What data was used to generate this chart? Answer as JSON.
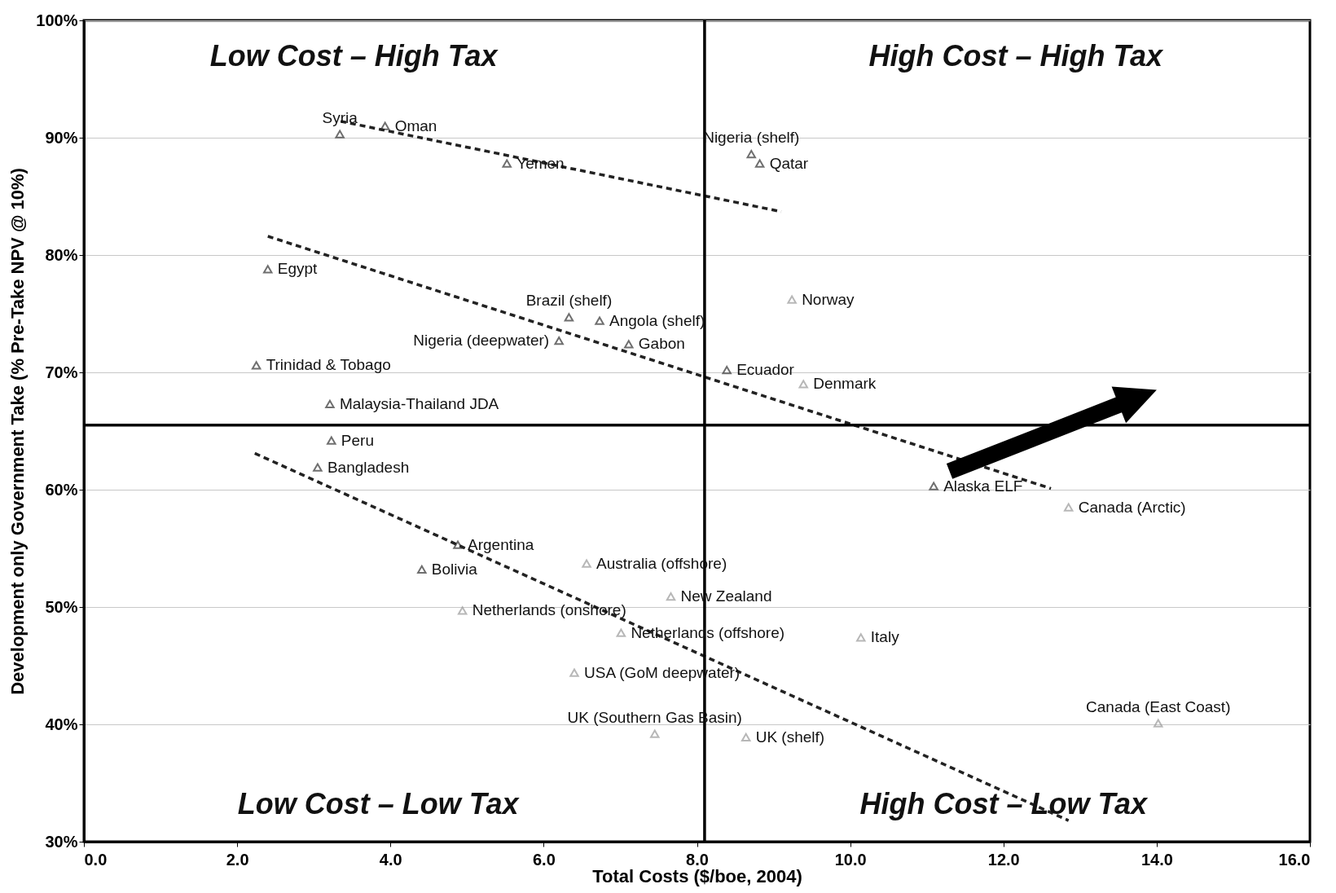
{
  "chart_data": {
    "type": "scatter",
    "xlabel": "Total Costs ($/boe, 2004)",
    "ylabel": "Development only Government Take (% Pre-Take NPV @ 10%)",
    "xlim": [
      0,
      16
    ],
    "xticks": [
      {
        "value": 0,
        "label": "0.0"
      },
      {
        "value": 2,
        "label": "2.0"
      },
      {
        "value": 4,
        "label": "4.0"
      },
      {
        "value": 6,
        "label": "6.0"
      },
      {
        "value": 8,
        "label": "8.0"
      },
      {
        "value": 10,
        "label": "10.0"
      },
      {
        "value": 12,
        "label": "12.0"
      },
      {
        "value": 14,
        "label": "14.0"
      },
      {
        "value": 16,
        "label": "16.0"
      }
    ],
    "ylim": [
      30,
      100
    ],
    "yticks": [
      {
        "value": 30,
        "label": "30%"
      },
      {
        "value": 40,
        "label": "40%"
      },
      {
        "value": 50,
        "label": "50%"
      },
      {
        "value": 60,
        "label": "60%"
      },
      {
        "value": 70,
        "label": "70%"
      },
      {
        "value": 80,
        "label": "80%"
      },
      {
        "value": 90,
        "label": "90%"
      },
      {
        "value": 100,
        "label": "100%"
      }
    ],
    "grid": "y",
    "series": [
      {
        "marker": "triangle",
        "color": "#333333",
        "x": [
          3.93,
          3.34,
          5.52,
          8.71,
          8.82,
          2.4,
          6.33,
          6.73,
          6.2,
          7.11,
          8.39,
          2.25,
          3.21,
          3.23,
          3.05,
          11.09,
          4.88,
          4.41
        ],
        "values": [
          91.0,
          90.3,
          87.8,
          88.6,
          87.8,
          78.8,
          74.7,
          74.4,
          72.7,
          72.4,
          70.2,
          70.6,
          67.3,
          64.2,
          61.9,
          60.3,
          55.3,
          53.2
        ]
      },
      {
        "marker": "triangle",
        "color": "#9a9a9a",
        "x": [
          9.24,
          9.39,
          12.85,
          6.56,
          7.66,
          4.94,
          7.01,
          10.14,
          6.4,
          7.45,
          8.64,
          14.02
        ],
        "values": [
          76.2,
          69.0,
          58.5,
          53.7,
          50.9,
          49.7,
          47.8,
          47.4,
          44.4,
          39.2,
          38.9,
          40.1
        ]
      },
      {
        "type": "line",
        "marker": "none",
        "line_style": "dashed",
        "color": "#222222",
        "x": [
          3.35,
          9.1
        ],
        "values": [
          91.4,
          83.7
        ]
      },
      {
        "type": "line",
        "marker": "none",
        "line_style": "dashed",
        "color": "#222222",
        "x": [
          2.4,
          12.62
        ],
        "values": [
          81.6,
          60.1
        ]
      },
      {
        "type": "line",
        "marker": "none",
        "line_style": "dashed",
        "color": "#222222",
        "x": [
          2.23,
          12.85
        ],
        "values": [
          63.1,
          31.8
        ]
      }
    ],
    "ref_lines": [
      {
        "axis": "x",
        "value": 8.1,
        "color": "#000000"
      },
      {
        "axis": "y",
        "value": 65.5,
        "color": "#000000"
      }
    ],
    "annotations": [
      "Low Cost – High Tax",
      "High Cost – High Tax",
      "Low Cost – Low Tax",
      "High Cost – Low Tax",
      {
        "text": "Oman",
        "x": 3.93,
        "y": 91.0
      },
      {
        "text": "Syria",
        "x": 3.34,
        "y": 90.3
      },
      {
        "text": "Yemen",
        "x": 5.52,
        "y": 87.8
      },
      {
        "text": "Nigeria (shelf)",
        "x": 8.71,
        "y": 88.6
      },
      {
        "text": "Qatar",
        "x": 8.82,
        "y": 87.8
      },
      {
        "text": "Egypt",
        "x": 2.4,
        "y": 78.8
      },
      {
        "text": "Brazil (shelf)",
        "x": 6.33,
        "y": 74.7
      },
      {
        "text": "Angola (shelf)",
        "x": 6.73,
        "y": 74.4
      },
      {
        "text": "Nigeria (deepwater)",
        "x": 6.2,
        "y": 72.7
      },
      {
        "text": "Gabon",
        "x": 7.11,
        "y": 72.4
      },
      {
        "text": "Ecuador",
        "x": 8.39,
        "y": 70.2
      },
      {
        "text": "Trinidad & Tobago",
        "x": 2.25,
        "y": 70.6
      },
      {
        "text": "Malaysia-Thailand JDA",
        "x": 3.21,
        "y": 67.3
      },
      {
        "text": "Peru",
        "x": 3.23,
        "y": 64.2
      },
      {
        "text": "Bangladesh",
        "x": 3.05,
        "y": 61.9
      },
      {
        "text": "Alaska ELF",
        "x": 11.09,
        "y": 60.3
      },
      {
        "text": "Argentina",
        "x": 4.88,
        "y": 55.3
      },
      {
        "text": "Bolivia",
        "x": 4.41,
        "y": 53.2
      },
      {
        "text": "Norway",
        "x": 9.24,
        "y": 76.2
      },
      {
        "text": "Denmark",
        "x": 9.39,
        "y": 69.0
      },
      {
        "text": "Canada (Arctic)",
        "x": 12.85,
        "y": 58.5
      },
      {
        "text": "Australia (offshore)",
        "x": 6.56,
        "y": 53.7
      },
      {
        "text": "New Zealand",
        "x": 7.66,
        "y": 50.9
      },
      {
        "text": "Netherlands (onshore)",
        "x": 4.94,
        "y": 49.7
      },
      {
        "text": "Netherlands (offshore)",
        "x": 7.01,
        "y": 47.8
      },
      {
        "text": "Italy",
        "x": 10.14,
        "y": 47.4
      },
      {
        "text": "USA (GoM deepwater)",
        "x": 6.4,
        "y": 44.4
      },
      {
        "text": "UK (Southern Gas Basin)",
        "x": 7.45,
        "y": 39.2
      },
      {
        "text": "UK (shelf)",
        "x": 8.64,
        "y": 38.9
      },
      {
        "text": "Canada (East Coast)",
        "x": 14.02,
        "y": 40.1
      }
    ]
  }
}
